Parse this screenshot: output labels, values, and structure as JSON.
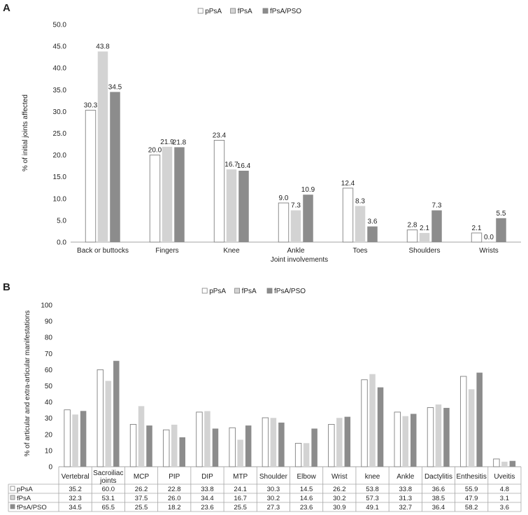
{
  "colors": {
    "pPsA": "#ffffff",
    "fPsA": "#d3d3d3",
    "fPsA_PSO": "#8c8c8c",
    "stroke": "#808080",
    "axis": "#a6a6a6",
    "text": "#222222"
  },
  "chart_data": [
    {
      "panel": "A",
      "type": "bar",
      "title": "",
      "xlabel": "Joint involvements",
      "ylabel": "% of initial joints affected",
      "ylim": [
        0,
        50
      ],
      "yticks": [
        "0.0",
        "5.0",
        "10.0",
        "15.0",
        "20.0",
        "25.0",
        "30.0",
        "35.0",
        "40.0",
        "45.0",
        "50.0"
      ],
      "legend_position": "top-center",
      "categories": [
        "Back or buttocks",
        "Fingers",
        "Knee",
        "Ankle",
        "Toes",
        "Shoulders",
        "Wrists"
      ],
      "series": [
        {
          "name": "pPsA",
          "values": [
            30.3,
            20.0,
            23.4,
            9.0,
            12.4,
            2.8,
            2.1
          ],
          "labels": [
            "30.3",
            "20.0",
            "23.4",
            "9.0",
            "12.4",
            "2.8",
            "2.1"
          ]
        },
        {
          "name": "fPsA",
          "values": [
            43.8,
            21.9,
            16.7,
            7.3,
            8.3,
            2.1,
            0.0
          ],
          "labels": [
            "43.8",
            "21.9",
            "16.7",
            "7.3",
            "8.3",
            "2.1",
            "0.0"
          ]
        },
        {
          "name": "fPsA/PSO",
          "values": [
            34.5,
            21.8,
            16.4,
            10.9,
            3.6,
            7.3,
            5.5
          ],
          "labels": [
            "34.5",
            "21.8",
            "16.4",
            "10.9",
            "3.6",
            "7.3",
            "5.5"
          ]
        }
      ]
    },
    {
      "panel": "B",
      "type": "bar",
      "title": "",
      "xlabel": "",
      "ylabel": "% of articular and extra-articular manifestations",
      "ylim": [
        0,
        100
      ],
      "yticks": [
        "0",
        "10",
        "20",
        "30",
        "40",
        "50",
        "60",
        "70",
        "80",
        "90",
        "100"
      ],
      "legend_position": "top-center",
      "data_table": true,
      "categories": [
        "Vertebral",
        "Sacroiliac joints",
        "MCP",
        "PIP",
        "DIP",
        "MTP",
        "Shoulder",
        "Elbow",
        "Wrist",
        "knee",
        "Ankle",
        "Dactylitis",
        "Enthesitis",
        "Uveitis"
      ],
      "series": [
        {
          "name": "pPsA",
          "values": [
            35.2,
            60.0,
            26.2,
            22.8,
            33.8,
            24.1,
            30.3,
            14.5,
            26.2,
            53.8,
            33.8,
            36.6,
            55.9,
            4.8
          ],
          "labels": [
            "35.2",
            "60.0",
            "26.2",
            "22.8",
            "33.8",
            "24.1",
            "30.3",
            "14.5",
            "26.2",
            "53.8",
            "33.8",
            "36.6",
            "55.9",
            "4.8"
          ]
        },
        {
          "name": "fPsA",
          "values": [
            32.3,
            53.1,
            37.5,
            26.0,
            34.4,
            16.7,
            30.2,
            14.6,
            30.2,
            57.3,
            31.3,
            38.5,
            47.9,
            3.1
          ],
          "labels": [
            "32.3",
            "53.1",
            "37.5",
            "26.0",
            "34.4",
            "16.7",
            "30.2",
            "14.6",
            "30.2",
            "57.3",
            "31.3",
            "38.5",
            "47.9",
            "3.1"
          ]
        },
        {
          "name": "fPsA/PSO",
          "values": [
            34.5,
            65.5,
            25.5,
            18.2,
            23.6,
            25.5,
            27.3,
            23.6,
            30.9,
            49.1,
            32.7,
            36.4,
            58.2,
            3.6
          ],
          "labels": [
            "34.5",
            "65.5",
            "25.5",
            "18.2",
            "23.6",
            "25.5",
            "27.3",
            "23.6",
            "30.9",
            "49.1",
            "32.7",
            "36.4",
            "58.2",
            "3.6"
          ]
        }
      ]
    }
  ]
}
